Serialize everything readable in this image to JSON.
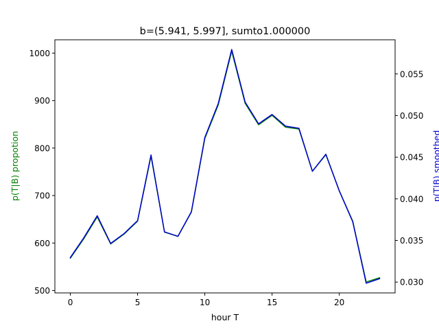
{
  "chart_data": {
    "type": "line",
    "title": "b=(5.941, 5.997], sumto1.000000",
    "xlabel": "hour T",
    "ylabel_left": "p(T|B) propotion",
    "ylabel_right": "p(T|B) smoothed",
    "ylabel_left_color": "#008000",
    "ylabel_right_color": "#0000cc",
    "xlim": [
      -1.15,
      24.15
    ],
    "ylim_left": [
      495,
      1028
    ],
    "ylim_right": [
      0.0287,
      0.0591
    ],
    "xticks": [
      0,
      5,
      10,
      15,
      20
    ],
    "yticks_left": [
      500,
      600,
      700,
      800,
      900,
      1000
    ],
    "yticks_right": [
      0.03,
      0.035,
      0.04,
      0.045,
      0.05,
      0.055
    ],
    "yticks_right_labels": [
      "0.030",
      "0.035",
      "0.040",
      "0.045",
      "0.050",
      "0.055"
    ],
    "grid": false,
    "series": [
      {
        "axis": "left",
        "color": "#008000",
        "x": [
          0,
          1,
          2,
          3,
          4,
          5,
          6,
          7,
          8,
          9,
          10,
          11,
          12,
          13,
          14,
          15,
          16,
          17,
          18,
          19,
          20,
          21,
          22,
          23
        ],
        "values": [
          568,
          609,
          655,
          598,
          619,
          646,
          783,
          623,
          614,
          665,
          820,
          891,
          1004,
          894,
          849,
          869,
          844,
          840,
          751,
          786,
          710,
          646,
          518,
          527
        ]
      },
      {
        "axis": "right",
        "color": "#0000cc",
        "x": [
          0,
          1,
          2,
          3,
          4,
          5,
          6,
          7,
          8,
          9,
          10,
          11,
          12,
          13,
          14,
          15,
          16,
          17,
          18,
          19,
          20,
          21,
          22,
          23
        ],
        "values": [
          0.03295,
          0.03532,
          0.03797,
          0.03464,
          0.03583,
          0.03738,
          0.04527,
          0.03603,
          0.0355,
          0.03845,
          0.04737,
          0.05145,
          0.05794,
          0.05161,
          0.04901,
          0.05013,
          0.04873,
          0.04847,
          0.04332,
          0.04536,
          0.04095,
          0.03724,
          0.02986,
          0.03041
        ]
      }
    ]
  }
}
